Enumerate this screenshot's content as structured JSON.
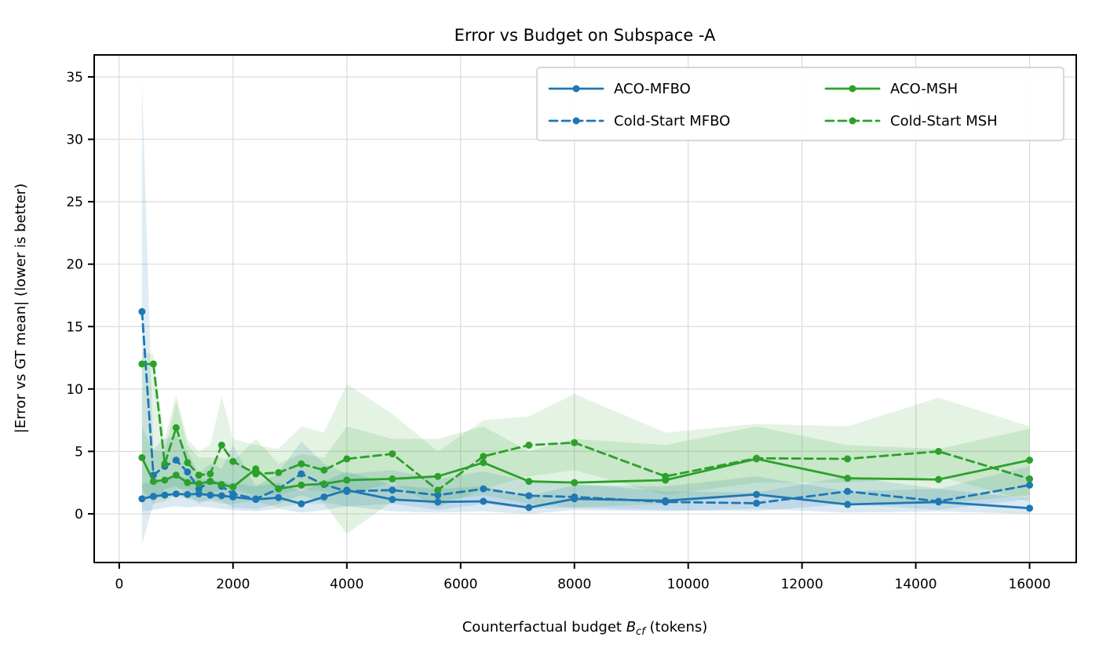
{
  "chart_data": {
    "type": "line",
    "title": "Error vs Budget on Subspace -A",
    "ylabel": "|Error vs GT mean| (lower is better)",
    "xlabel": {
      "prefix": "Counterfactual budget ",
      "math_base": "B",
      "math_sub": "cf",
      "suffix": " (tokens)"
    },
    "grid": true,
    "legend": {
      "columns": 2,
      "location": "upper center"
    },
    "xlim": [
      -440,
      16820
    ],
    "ylim": [
      -3.9,
      36.76
    ],
    "xticks": [
      0,
      2000,
      4000,
      6000,
      8000,
      10000,
      12000,
      14000,
      16000
    ],
    "yticks": [
      0,
      5,
      10,
      15,
      20,
      25,
      30,
      35
    ],
    "x": [
      400,
      600,
      800,
      1000,
      1200,
      1400,
      1600,
      1800,
      2000,
      2400,
      2800,
      3200,
      3600,
      4000,
      4800,
      5600,
      6400,
      7200,
      8000,
      9600,
      11200,
      12800,
      14400,
      16000
    ],
    "series": [
      {
        "name": "ACO-MFBO",
        "color": "#1f77b4",
        "style": "solid",
        "band_alpha": 0.16,
        "values": [
          1.2,
          1.4,
          1.5,
          1.6,
          1.55,
          1.6,
          1.5,
          1.45,
          1.35,
          1.15,
          1.3,
          0.8,
          1.35,
          1.9,
          1.15,
          0.95,
          1.0,
          0.5,
          1.2,
          1.05,
          1.55,
          0.75,
          0.95,
          0.45
        ],
        "band_lo": [
          0.2,
          0.3,
          0.5,
          0.6,
          0.5,
          0.6,
          0.5,
          0.4,
          0.3,
          0.2,
          0.4,
          0.1,
          0.3,
          0.6,
          0.2,
          0.1,
          0.2,
          0.0,
          0.3,
          0.2,
          0.4,
          0.1,
          0.2,
          0.0
        ],
        "band_hi": [
          2.4,
          2.6,
          2.8,
          3.0,
          2.9,
          2.8,
          2.7,
          2.6,
          2.5,
          2.2,
          2.5,
          1.8,
          2.6,
          3.4,
          2.3,
          2.0,
          2.2,
          1.4,
          2.3,
          2.2,
          3.0,
          1.8,
          2.0,
          1.2
        ]
      },
      {
        "name": "Cold-Start MFBO",
        "color": "#1f77b4",
        "style": "dashed",
        "band_alpha": 0.14,
        "values": [
          16.2,
          3.1,
          3.8,
          4.3,
          3.35,
          2.0,
          2.6,
          2.2,
          1.6,
          1.2,
          2.0,
          3.2,
          2.35,
          1.8,
          1.9,
          1.5,
          2.0,
          1.45,
          1.35,
          0.95,
          0.85,
          1.8,
          1.0,
          2.3
        ],
        "band_lo": [
          -2.5,
          0.8,
          2.0,
          2.2,
          1.5,
          0.8,
          1.2,
          1.0,
          0.5,
          0.4,
          0.8,
          1.5,
          0.9,
          0.6,
          0.8,
          0.3,
          0.8,
          0.4,
          0.5,
          0.3,
          0.2,
          0.8,
          0.3,
          1.2
        ],
        "band_hi": [
          34.7,
          5.2,
          6.0,
          6.3,
          5.0,
          3.2,
          4.0,
          3.6,
          5.5,
          2.2,
          3.3,
          5.8,
          4.0,
          3.2,
          3.5,
          2.8,
          3.4,
          2.6,
          2.4,
          1.8,
          1.7,
          3.0,
          2.0,
          3.8
        ]
      },
      {
        "name": "ACO-MSH",
        "color": "#2ca02c",
        "style": "solid",
        "band_alpha": 0.14,
        "values": [
          4.5,
          2.6,
          2.7,
          3.1,
          2.5,
          2.4,
          2.6,
          2.35,
          2.15,
          3.6,
          2.0,
          2.3,
          2.4,
          2.7,
          2.8,
          3.0,
          4.1,
          2.6,
          2.5,
          2.7,
          4.4,
          2.85,
          2.75,
          4.3
        ],
        "band_lo": [
          2.0,
          0.8,
          1.0,
          1.5,
          1.2,
          1.0,
          1.0,
          0.8,
          0.8,
          1.0,
          0.5,
          0.8,
          0.8,
          -1.6,
          1.0,
          1.0,
          1.5,
          0.8,
          0.5,
          0.8,
          1.5,
          0.8,
          0.8,
          1.5
        ],
        "band_hi": [
          7.0,
          5.0,
          5.0,
          9.0,
          5.5,
          4.5,
          4.5,
          4.5,
          4.2,
          6.0,
          4.0,
          4.8,
          4.5,
          7.0,
          6.0,
          6.0,
          7.0,
          5.0,
          6.0,
          5.5,
          7.0,
          5.5,
          5.2,
          6.8
        ],
        "marker_note": "circle markers"
      },
      {
        "name": "Cold-Start MSH",
        "color": "#2ca02c",
        "style": "dashed",
        "band_alpha": 0.13,
        "values": [
          12.0,
          12.0,
          4.0,
          6.9,
          4.1,
          3.1,
          3.2,
          5.5,
          4.2,
          3.2,
          3.3,
          4.0,
          3.5,
          4.4,
          4.8,
          1.9,
          4.6,
          5.5,
          5.7,
          3.0,
          4.45,
          4.4,
          5.0,
          2.8
        ],
        "band_lo": [
          1.0,
          1.5,
          1.5,
          2.0,
          2.0,
          1.5,
          1.5,
          2.0,
          2.0,
          1.5,
          1.5,
          2.0,
          1.8,
          1.5,
          2.5,
          0.5,
          2.0,
          3.0,
          3.5,
          1.5,
          2.5,
          2.5,
          3.0,
          1.0
        ],
        "band_hi": [
          13.0,
          12.8,
          6.0,
          9.5,
          6.0,
          5.0,
          5.5,
          9.4,
          6.0,
          5.5,
          5.2,
          7.0,
          6.5,
          10.4,
          8.0,
          5.0,
          7.5,
          7.8,
          9.6,
          6.5,
          7.2,
          7.0,
          9.3,
          7.0
        ]
      }
    ]
  },
  "style": {
    "grid_color": "#dcdcdc",
    "frame_color": "#000000",
    "legend_border_color": "#cccccc",
    "background": "#ffffff"
  }
}
